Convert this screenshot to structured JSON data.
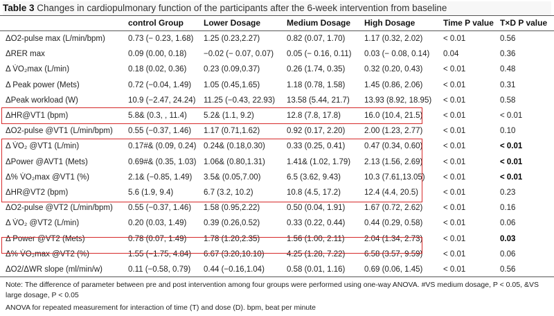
{
  "caption": {
    "label": "Table 3",
    "text": "Changes in cardiopulmonary function of the participants after the 6-week intervention from baseline"
  },
  "headers": [
    "",
    "control Group",
    "Lower Dosage",
    "Medium Dosage",
    "High Dosage",
    "Time P value",
    "T×D P value"
  ],
  "rows": [
    {
      "label": "ΔO2-pulse max (L/min/bpm)",
      "cells": [
        "0.73 (− 0.23, 1.68)",
        "1.25 (0.23,2.27)",
        "0.82 (0.07, 1.70)",
        "1.17 (0.32, 2.02)",
        "< 0.01",
        "0.56"
      ],
      "bold_last": false
    },
    {
      "label": "ΔRER max",
      "cells": [
        "0.09 (0.00, 0.18)",
        "−0.02 (− 0.07, 0.07)",
        "0.05 (− 0.16, 0.11)",
        "0.03 (− 0.08, 0.14)",
        "0.04",
        "0.36"
      ],
      "bold_last": false
    },
    {
      "label": "Δ V̇O₂max (L/min)",
      "cells": [
        "0.18 (0.02, 0.36)",
        "0.23 (0.09,0.37)",
        "0.26 (1.74, 0.35)",
        "0.32 (0.20, 0.43)",
        "< 0.01",
        "0.48"
      ],
      "bold_last": false
    },
    {
      "label": "Δ Peak power (Mets)",
      "cells": [
        "0.72 (−0.04, 1.49)",
        "1.05 (0.45,1.65)",
        "1.18 (0.78, 1.58)",
        "1.45 (0.86, 2.06)",
        "< 0.01",
        "0.31"
      ],
      "bold_last": false
    },
    {
      "label": "ΔPeak workload (W)",
      "cells": [
        "10.9 (−2.47, 24.24)",
        "11.25 (−0.43, 22.93)",
        "13.58 (5.44, 21.7)",
        "13.93 (8.92, 18.95)",
        "< 0.01",
        "0.58"
      ],
      "bold_last": false
    },
    {
      "label": "ΔHR@VT1 (bpm)",
      "cells": [
        "5.8& (0.3, , 11.4)",
        "5.2& (1.1, 9.2)",
        "12.8 (7.8, 17.8)",
        "16.0 (10.4, 21.5)",
        "< 0.01",
        "< 0.01"
      ],
      "bold_last": false
    },
    {
      "label": "ΔO2-pulse @VT1 (L/min/bpm)",
      "cells": [
        "0.55 (−0.37, 1.46)",
        "1.17 (0.71,1.62)",
        "0.92 (0.17, 2.20)",
        "2.00 (1.23, 2.77)",
        "< 0.01",
        "0.10"
      ],
      "bold_last": false
    },
    {
      "label": "Δ V̇O₂ @VT1 (L/min)",
      "cells": [
        "0.17#& (0.09, 0.24)",
        "0.24& (0.18,0.30)",
        "0.33 (0.25, 0.41)",
        "0.47 (0.34, 0.60)",
        "< 0.01",
        "< 0.01"
      ],
      "bold_last": true
    },
    {
      "label": "ΔPower @AVT1 (Mets)",
      "cells": [
        "0.69#& (0.35, 1.03)",
        "1.06& (0.80,1.31)",
        "1.41& (1.02, 1.79)",
        "2.13 (1.56, 2.69)",
        "< 0.01",
        "< 0.01"
      ],
      "bold_last": true
    },
    {
      "label": "Δ% V̇O₂max @VT1 (%)",
      "cells": [
        "2.1& (−0.85, 1.49)",
        "3.5& (0.05,7.00)",
        "6.5 (3.62, 9.43)",
        "10.3 (7.61,13.05)",
        "< 0.01",
        "< 0.01"
      ],
      "bold_last": true
    },
    {
      "label": "ΔHR@VT2 (bpm)",
      "cells": [
        "5.6 (1.9, 9.4)",
        "6.7 (3.2, 10.2)",
        "10.8 (4.5, 17.2)",
        "12.4 (4.4, 20.5)",
        "< 0.01",
        "0.23"
      ],
      "bold_last": false
    },
    {
      "label": "ΔO2-pulse @VT2 (L/min/bpm)",
      "cells": [
        "0.55 (−0.37, 1.46)",
        "1.58 (0.95,2.22)",
        "0.50 (0.04, 1.91)",
        "1.67 (0.72, 2.62)",
        "< 0.01",
        "0.16"
      ],
      "bold_last": false
    },
    {
      "label": "Δ V̇O₂ @VT2 (L/min)",
      "cells": [
        "0.20 (0.03, 1.49)",
        "0.39 (0.26,0.52)",
        "0.33 (0.22, 0.44)",
        "0.44 (0.29, 0.58)",
        "< 0.01",
        "0.06"
      ],
      "bold_last": false
    },
    {
      "label": "Δ Power @VT2 (Mets)",
      "cells": [
        "0.78 (0.07, 1.49)",
        "1.78 (1.20,2.35)",
        "1.56 (1.00, 2.11)",
        "2.04 (1.34, 2.73)",
        "< 0.01",
        "0.03"
      ],
      "bold_last": true
    },
    {
      "label": "Δ% V̇O₂max @VT2 (%)",
      "cells": [
        "1.55 (−1.75, 4.84)",
        "6.67 (3.20,10.10)",
        "4.25 (1.28, 7.22)",
        "6.58 (3.57, 9.59)",
        "< 0.01",
        "0.06"
      ],
      "bold_last": false
    },
    {
      "label": "ΔO2/ΔWR slope (ml/min/w)",
      "cells": [
        "0.11 (−0.58, 0.79)",
        "0.44 (−0.16,1.04)",
        "0.58 (0.01, 1.16)",
        "0.69 (0.06, 1.45)",
        "< 0.01",
        "0.56"
      ],
      "bold_last": false
    }
  ],
  "notes": {
    "line1": "Note: The difference of parameter between pre and post intervention among four groups were performed using one-way ANOVA. #VS medium dosage, P < 0.05, &VS large dosage, P < 0.05",
    "line2": "ANOVA for repeated measurement for interaction of time (T) and dose (D). bpm, beat per minute"
  },
  "highlight_color": "#d62828"
}
